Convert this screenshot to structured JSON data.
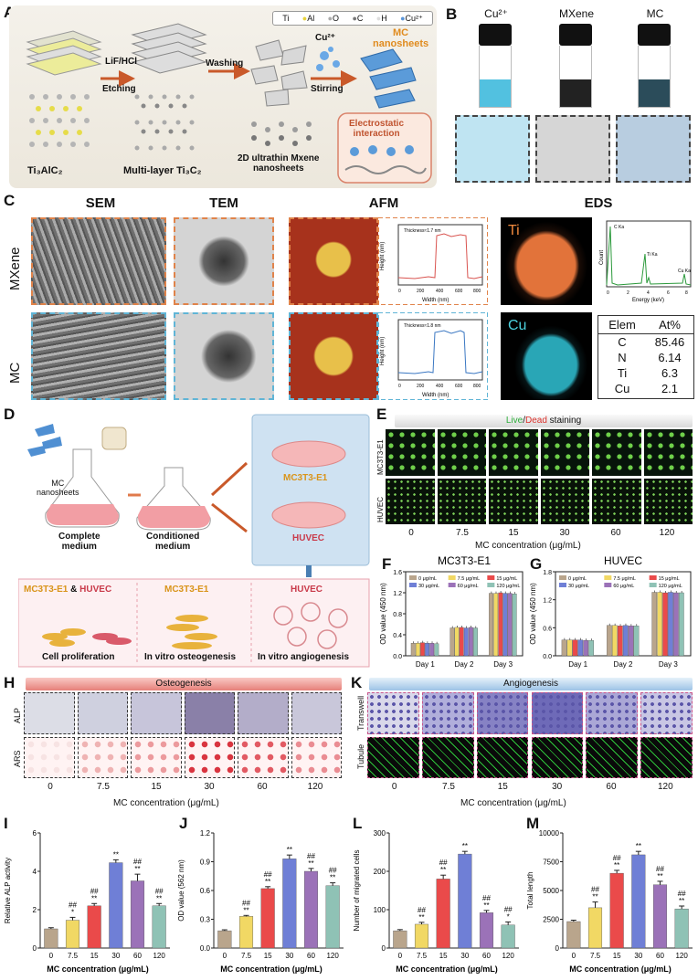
{
  "panels": {
    "A": "A",
    "B": "B",
    "C": "C",
    "D": "D",
    "E": "E",
    "F": "F",
    "G": "G",
    "H": "H",
    "I": "I",
    "J": "J",
    "K": "K",
    "L": "L",
    "M": "M"
  },
  "panelA": {
    "legend": [
      "Ti",
      "Al",
      "O",
      "C",
      "H",
      "Cu²⁺"
    ],
    "legend_colors": [
      "#bdbdbd",
      "#e8e36a",
      "#c9c9c9",
      "#9a9a9a",
      "#e0e0e0",
      "#6fa6de"
    ],
    "ti3alc2": "Ti₃AlC₂",
    "lif": "LiF/HCl",
    "etching": "Etching",
    "multilayer": "Multi-layer Ti₃C₂",
    "washing": "Washing",
    "cu": "Cu²⁺",
    "stirring": "Stirring",
    "mc_nanosheets": "MC\nnanosheets",
    "ultrathin": "2D ultrathin Mxene\nnanosheets",
    "electrostatic": "Electrostatic\ninteraction"
  },
  "panelB": {
    "labels": [
      "Cu²⁺",
      "MXene",
      "MC"
    ]
  },
  "panelC": {
    "cols": [
      "SEM",
      "TEM",
      "AFM",
      "EDS"
    ],
    "rows": [
      "MXene",
      "MC"
    ],
    "afm_mxene": {
      "thickness": "Thickness≈1.7 nm",
      "xlabel": "Width (nm)",
      "ylabel": "Height (nm)",
      "xticks": [
        "0",
        "200",
        "400",
        "600",
        "800"
      ],
      "yticks": [
        "0.0",
        "0.5",
        "1.0",
        "1.5",
        "2.0"
      ]
    },
    "afm_mc": {
      "thickness": "Thickness≈1.8 nm",
      "xlabel": "Width (nm)",
      "ylabel": "Height (nm)",
      "xticks": [
        "0",
        "200",
        "400",
        "600",
        "800"
      ],
      "yticks": [
        "0.0",
        "0.5",
        "1.0",
        "1.5",
        "2.0"
      ]
    },
    "eds_ti": "Ti",
    "eds_cu": "Cu",
    "spectrum": {
      "xlabel": "Energy (keV)",
      "ylabel": "Count",
      "peaks": [
        "C Ka",
        "Ti Ka",
        "Cu Ka"
      ],
      "xticks": [
        "0",
        "2",
        "4",
        "6",
        "8"
      ]
    },
    "table": {
      "header": [
        "Elem",
        "At%"
      ],
      "rows": [
        [
          "C",
          "85.46"
        ],
        [
          "N",
          "6.14"
        ],
        [
          "Ti",
          "6.3"
        ],
        [
          "Cu",
          "2.1"
        ]
      ]
    }
  },
  "panelD": {
    "mc": "MC\nnanosheets",
    "complete": "Complete\nmedium",
    "conditioned": "Conditioned\nmedium",
    "mc3t3": "MC3T3-E1",
    "huvec": "HUVEC",
    "box_titles": [
      "MC3T3-E1",
      "&",
      "HUVEC",
      "MC3T3-E1",
      "HUVEC"
    ],
    "captions": [
      "Cell proliferation",
      "In vitro osteogenesis",
      "In vitro angiogenesis"
    ]
  },
  "panelE": {
    "title_live": "Live",
    "title_slash": "/",
    "title_dead": "Dead",
    "title_rest": " staining",
    "rows": [
      "MC3T3-E1",
      "HUVEC"
    ],
    "concs": [
      "0",
      "7.5",
      "15",
      "30",
      "60",
      "120"
    ],
    "xlabel": "MC concentration (μg/mL)"
  },
  "conc_legend": [
    "0 μg/mL",
    "7.5 μg/mL",
    "15 μg/mL",
    "30 μg/mL",
    "60 μg/mL",
    "120 μg/mL"
  ],
  "conc_colors": [
    "#b9a58c",
    "#f1d864",
    "#ea4a4a",
    "#6f7fd6",
    "#9b72b8",
    "#8fc2b5"
  ],
  "chart_data": [
    {
      "id": "F",
      "type": "bar",
      "title": "MC3T3-E1",
      "ylabel": "OD value (450 nm)",
      "categories": [
        "Day 1",
        "Day 2",
        "Day 3"
      ],
      "ylim": [
        0,
        1.6
      ],
      "yticks": [
        0,
        0.4,
        0.8,
        1.2,
        1.6
      ],
      "ytick_labels": [
        "0.0",
        "0.4",
        "0.8",
        "1.2",
        "1.6"
      ],
      "series": [
        {
          "name": "0 μg/mL",
          "values": [
            0.24,
            0.53,
            1.19
          ]
        },
        {
          "name": "7.5 μg/mL",
          "values": [
            0.24,
            0.54,
            1.19
          ]
        },
        {
          "name": "15 μg/mL",
          "values": [
            0.25,
            0.54,
            1.2
          ]
        },
        {
          "name": "30 μg/mL",
          "values": [
            0.24,
            0.53,
            1.19
          ]
        },
        {
          "name": "60 μg/mL",
          "values": [
            0.24,
            0.54,
            1.19
          ]
        },
        {
          "name": "120 μg/mL",
          "values": [
            0.23,
            0.53,
            1.18
          ]
        }
      ]
    },
    {
      "id": "G",
      "type": "bar",
      "title": "HUVEC",
      "ylabel": "OD value (450 nm)",
      "categories": [
        "Day 1",
        "Day 2",
        "Day 3"
      ],
      "ylim": [
        0,
        1.8
      ],
      "yticks": [
        0,
        0.6,
        1.2,
        1.8
      ],
      "ytick_labels": [
        "0.0",
        "0.6",
        "1.2",
        "1.8"
      ],
      "series": [
        {
          "name": "0 μg/mL",
          "values": [
            0.34,
            0.65,
            1.36
          ]
        },
        {
          "name": "7.5 μg/mL",
          "values": [
            0.34,
            0.65,
            1.36
          ]
        },
        {
          "name": "15 μg/mL",
          "values": [
            0.34,
            0.64,
            1.35
          ]
        },
        {
          "name": "30 μg/mL",
          "values": [
            0.34,
            0.65,
            1.36
          ]
        },
        {
          "name": "60 μg/mL",
          "values": [
            0.33,
            0.64,
            1.35
          ]
        },
        {
          "name": "120 μg/mL",
          "values": [
            0.33,
            0.64,
            1.35
          ]
        }
      ]
    },
    {
      "id": "I",
      "type": "bar",
      "ylabel": "Relative ALP activity",
      "xlabel": "MC concentration (μg/mL)",
      "categories": [
        "0",
        "7.5",
        "15",
        "30",
        "60",
        "120"
      ],
      "ylim": [
        0,
        6
      ],
      "yticks": [
        0,
        2,
        4,
        6
      ],
      "ytick_labels": [
        "0",
        "2",
        "4",
        "6"
      ],
      "values": [
        1.0,
        1.45,
        2.2,
        4.45,
        3.5,
        2.2
      ],
      "errors": [
        0.06,
        0.15,
        0.12,
        0.15,
        0.35,
        0.12
      ],
      "sig_top": [
        "",
        "##",
        "##",
        "",
        "##",
        "##"
      ],
      "sig_bottom": [
        "",
        "*",
        "**",
        "**",
        "**",
        "**"
      ]
    },
    {
      "id": "J",
      "type": "bar",
      "ylabel": "OD value (562 nm)",
      "xlabel": "MC concentration (μg/mL)",
      "categories": [
        "0",
        "7.5",
        "15",
        "30",
        "60",
        "120"
      ],
      "ylim": [
        0,
        1.2
      ],
      "yticks": [
        0,
        0.3,
        0.6,
        0.9,
        1.2
      ],
      "ytick_labels": [
        "0.0",
        "0.3",
        "0.6",
        "0.9",
        "1.2"
      ],
      "values": [
        0.18,
        0.33,
        0.62,
        0.93,
        0.8,
        0.65
      ],
      "errors": [
        0.01,
        0.01,
        0.02,
        0.04,
        0.03,
        0.03
      ],
      "sig_top": [
        "",
        "##",
        "##",
        "",
        "##",
        "##"
      ],
      "sig_bottom": [
        "",
        "**",
        "**",
        "**",
        "**",
        "**"
      ]
    },
    {
      "id": "L",
      "type": "bar",
      "ylabel": "Number of migrated cells",
      "xlabel": "MC concentration (μg/mL)",
      "categories": [
        "0",
        "7.5",
        "15",
        "30",
        "60",
        "120"
      ],
      "ylim": [
        0,
        300
      ],
      "yticks": [
        0,
        100,
        200,
        300
      ],
      "ytick_labels": [
        "0",
        "100",
        "200",
        "300"
      ],
      "values": [
        45,
        62,
        180,
        245,
        92,
        60
      ],
      "errors": [
        3,
        5,
        10,
        7,
        6,
        8
      ],
      "sig_top": [
        "",
        "##",
        "##",
        "",
        "##",
        "##"
      ],
      "sig_bottom": [
        "",
        "**",
        "**",
        "**",
        "**",
        "*"
      ]
    },
    {
      "id": "M",
      "type": "bar",
      "ylabel": "Total length",
      "xlabel": "MC concentration (μg/mL)",
      "categories": [
        "0",
        "7.5",
        "15",
        "30",
        "60",
        "120"
      ],
      "ylim": [
        0,
        10000
      ],
      "yticks": [
        0,
        2500,
        5000,
        7500,
        10000
      ],
      "ytick_labels": [
        "0",
        "2500",
        "5000",
        "7500",
        "10000"
      ],
      "values": [
        2300,
        3500,
        6500,
        8100,
        5500,
        3400
      ],
      "errors": [
        120,
        500,
        250,
        300,
        300,
        250
      ],
      "sig_top": [
        "",
        "##",
        "##",
        "",
        "##",
        "##"
      ],
      "sig_bottom": [
        "",
        "**",
        "**",
        "**",
        "**",
        "**"
      ]
    }
  ],
  "panelH": {
    "band": "Osteogenesis",
    "rows": [
      "ALP",
      "ARS"
    ],
    "concs": [
      "0",
      "7.5",
      "15",
      "30",
      "60",
      "120"
    ],
    "xlabel": "MC concentration (μg/mL)"
  },
  "panelK": {
    "band": "Angiogenesis",
    "rows": [
      "Transwell",
      "Tubule"
    ],
    "concs": [
      "0",
      "7.5",
      "15",
      "30",
      "60",
      "120"
    ],
    "xlabel": "MC concentration (μg/mL)"
  }
}
